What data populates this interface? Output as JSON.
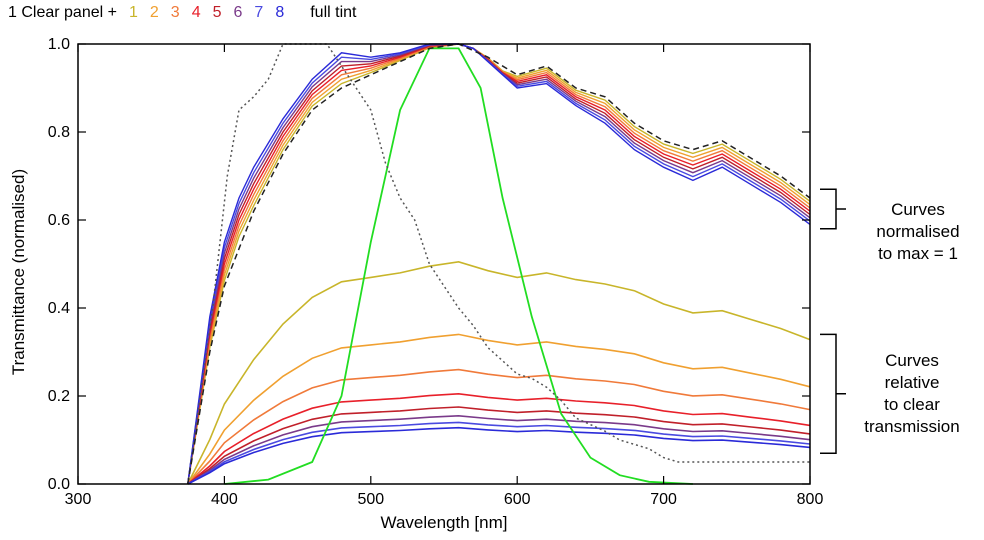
{
  "chart_data": {
    "type": "line",
    "legend": {
      "lead": "1 Clear panel +",
      "items": [
        {
          "label": "1",
          "color": "#c8b52a"
        },
        {
          "label": "2",
          "color": "#f0a030"
        },
        {
          "label": "3",
          "color": "#f07a3a"
        },
        {
          "label": "4",
          "color": "#e8202a"
        },
        {
          "label": "5",
          "color": "#c0202a"
        },
        {
          "label": "6",
          "color": "#7a3a8a"
        },
        {
          "label": "7",
          "color": "#4a4ae0"
        },
        {
          "label": "8",
          "color": "#2a2ad8"
        }
      ],
      "tail": "full tint"
    },
    "xlabel": "Wavelength [nm]",
    "ylabel": "Transmittance (normalised)",
    "xlim": [
      300,
      800
    ],
    "ylim": [
      0.0,
      1.0
    ],
    "xticks": [
      "300",
      "400",
      "500",
      "600",
      "700",
      "800"
    ],
    "yticks": [
      "0.0",
      "0.2",
      "0.4",
      "0.6",
      "0.8",
      "1.0"
    ],
    "annotations": {
      "normalised": [
        "Curves",
        "normalised",
        "to max = 1"
      ],
      "relative": [
        "Curves",
        "relative",
        "to clear",
        "transmission"
      ]
    },
    "reference_curves": {
      "green": {
        "color": "#22dd22",
        "x": [
          400,
          430,
          460,
          480,
          500,
          520,
          540,
          560,
          575,
          590,
          610,
          630,
          650,
          670,
          690,
          720
        ],
        "y": [
          0.0,
          0.01,
          0.05,
          0.2,
          0.55,
          0.85,
          0.99,
          0.99,
          0.9,
          0.65,
          0.38,
          0.16,
          0.06,
          0.02,
          0.005,
          0.0
        ]
      },
      "dotted": {
        "color": "#555555",
        "x": [
          375,
          392,
          402,
          410,
          420,
          430,
          440,
          470,
          480,
          500,
          510,
          520,
          530,
          540,
          560,
          570,
          580,
          590,
          600,
          610,
          620,
          630,
          640,
          660,
          670,
          690,
          700,
          710,
          720,
          800
        ],
        "y": [
          0.0,
          0.4,
          0.7,
          0.85,
          0.88,
          0.92,
          1.0,
          1.0,
          0.95,
          0.85,
          0.73,
          0.65,
          0.6,
          0.5,
          0.4,
          0.36,
          0.31,
          0.28,
          0.25,
          0.24,
          0.22,
          0.19,
          0.15,
          0.12,
          0.1,
          0.08,
          0.06,
          0.05,
          0.05,
          0.05
        ]
      },
      "normalised_clear": {
        "color": "#222222",
        "x": [
          375,
          390,
          400,
          420,
          440,
          460,
          480,
          500,
          520,
          540,
          560,
          580,
          600,
          620,
          640,
          660,
          680,
          700,
          720,
          740,
          760,
          780,
          800
        ],
        "y": [
          0.0,
          0.3,
          0.45,
          0.62,
          0.75,
          0.85,
          0.9,
          0.93,
          0.96,
          0.99,
          1.0,
          0.97,
          0.93,
          0.95,
          0.9,
          0.88,
          0.82,
          0.78,
          0.76,
          0.78,
          0.74,
          0.7,
          0.65
        ]
      }
    },
    "normalised_series": {
      "x": [
        375,
        390,
        400,
        410,
        420,
        440,
        460,
        480,
        500,
        520,
        540,
        560,
        570,
        580,
        590,
        600,
        620,
        640,
        660,
        680,
        700,
        720,
        740,
        760,
        780,
        800
      ],
      "clear": [
        0.0,
        0.3,
        0.45,
        0.55,
        0.62,
        0.75,
        0.85,
        0.9,
        0.93,
        0.96,
        0.99,
        1.0,
        0.99,
        0.97,
        0.94,
        0.93,
        0.95,
        0.9,
        0.88,
        0.82,
        0.78,
        0.76,
        0.78,
        0.74,
        0.7,
        0.65
      ],
      "full_tint": [
        0.0,
        0.38,
        0.55,
        0.65,
        0.72,
        0.83,
        0.92,
        0.98,
        0.97,
        0.98,
        1.0,
        1.0,
        0.99,
        0.96,
        0.93,
        0.9,
        0.91,
        0.86,
        0.82,
        0.76,
        0.72,
        0.69,
        0.72,
        0.68,
        0.64,
        0.59
      ]
    },
    "relative_series": {
      "x": [
        375,
        390,
        400,
        420,
        440,
        460,
        480,
        500,
        520,
        540,
        560,
        580,
        600,
        620,
        640,
        660,
        680,
        700,
        720,
        740,
        760,
        780,
        800
      ],
      "shape": [
        0.0,
        0.2,
        0.36,
        0.56,
        0.72,
        0.84,
        0.91,
        0.93,
        0.95,
        0.98,
        1.0,
        0.96,
        0.93,
        0.95,
        0.92,
        0.9,
        0.87,
        0.81,
        0.77,
        0.78,
        0.74,
        0.7,
        0.65
      ],
      "levels": [
        0.505,
        0.34,
        0.26,
        0.205,
        0.175,
        0.155,
        0.14,
        0.128
      ]
    }
  }
}
